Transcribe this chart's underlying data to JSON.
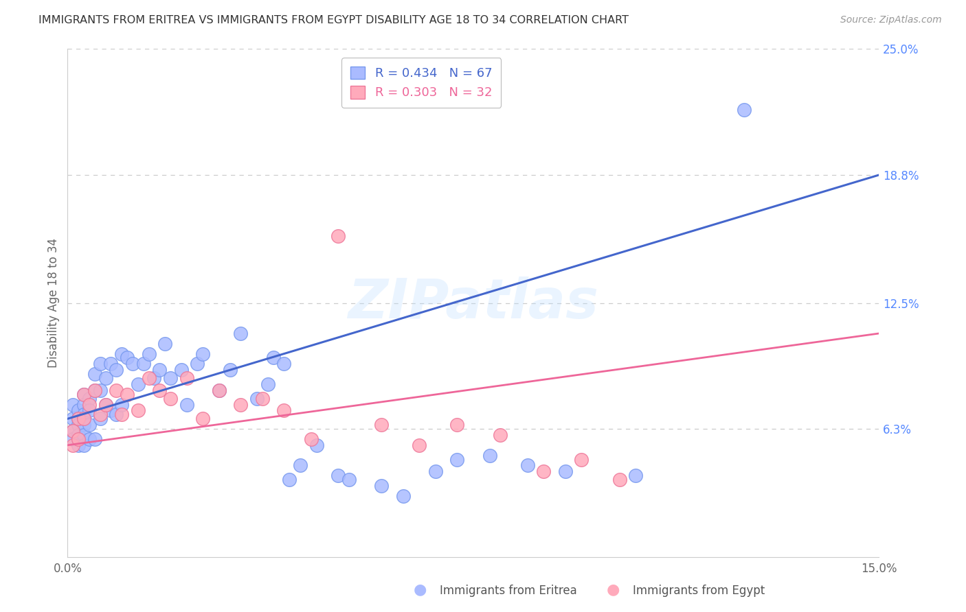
{
  "title": "IMMIGRANTS FROM ERITREA VS IMMIGRANTS FROM EGYPT DISABILITY AGE 18 TO 34 CORRELATION CHART",
  "source": "Source: ZipAtlas.com",
  "ylabel": "Disability Age 18 to 34",
  "xlim": [
    0.0,
    0.15
  ],
  "ylim": [
    0.0,
    0.25
  ],
  "ytick_labels_right": [
    "25.0%",
    "18.8%",
    "12.5%",
    "6.3%"
  ],
  "ytick_values_right": [
    0.25,
    0.188,
    0.125,
    0.063
  ],
  "series1_label": "Immigrants from Eritrea",
  "series1_R": "0.434",
  "series1_N": "67",
  "series1_dot_color": "#aabbff",
  "series1_dot_edge": "#7799ee",
  "series1_line_color": "#4466cc",
  "series2_label": "Immigrants from Egypt",
  "series2_R": "0.303",
  "series2_N": "32",
  "series2_dot_color": "#ffaabb",
  "series2_dot_edge": "#ee7799",
  "series2_line_color": "#ee6699",
  "watermark": "ZIPatlas",
  "background_color": "#ffffff",
  "grid_color": "#cccccc",
  "title_color": "#333333",
  "right_tick_color": "#5588ff",
  "blue_line_x0": 0.0,
  "blue_line_y0": 0.068,
  "blue_line_x1": 0.15,
  "blue_line_y1": 0.188,
  "pink_line_x0": 0.0,
  "pink_line_y0": 0.055,
  "pink_line_x1": 0.15,
  "pink_line_y1": 0.11,
  "s1_x": [
    0.001,
    0.001,
    0.001,
    0.001,
    0.002,
    0.002,
    0.002,
    0.002,
    0.002,
    0.003,
    0.003,
    0.003,
    0.003,
    0.003,
    0.003,
    0.004,
    0.004,
    0.004,
    0.004,
    0.005,
    0.005,
    0.005,
    0.006,
    0.006,
    0.006,
    0.007,
    0.007,
    0.008,
    0.008,
    0.009,
    0.009,
    0.01,
    0.01,
    0.011,
    0.012,
    0.013,
    0.014,
    0.015,
    0.016,
    0.017,
    0.018,
    0.019,
    0.021,
    0.022,
    0.024,
    0.025,
    0.028,
    0.03,
    0.032,
    0.035,
    0.037,
    0.038,
    0.04,
    0.041,
    0.043,
    0.046,
    0.05,
    0.052,
    0.058,
    0.062,
    0.068,
    0.072,
    0.078,
    0.085,
    0.092,
    0.105,
    0.125
  ],
  "s1_y": [
    0.075,
    0.068,
    0.062,
    0.058,
    0.072,
    0.068,
    0.065,
    0.06,
    0.055,
    0.08,
    0.075,
    0.07,
    0.065,
    0.06,
    0.055,
    0.078,
    0.072,
    0.065,
    0.058,
    0.09,
    0.082,
    0.058,
    0.095,
    0.082,
    0.068,
    0.088,
    0.075,
    0.095,
    0.072,
    0.092,
    0.07,
    0.1,
    0.075,
    0.098,
    0.095,
    0.085,
    0.095,
    0.1,
    0.088,
    0.092,
    0.105,
    0.088,
    0.092,
    0.075,
    0.095,
    0.1,
    0.082,
    0.092,
    0.11,
    0.078,
    0.085,
    0.098,
    0.095,
    0.038,
    0.045,
    0.055,
    0.04,
    0.038,
    0.035,
    0.03,
    0.042,
    0.048,
    0.05,
    0.045,
    0.042,
    0.04,
    0.22
  ],
  "s2_x": [
    0.001,
    0.001,
    0.002,
    0.002,
    0.003,
    0.003,
    0.004,
    0.005,
    0.006,
    0.007,
    0.009,
    0.01,
    0.011,
    0.013,
    0.015,
    0.017,
    0.019,
    0.022,
    0.025,
    0.028,
    0.032,
    0.036,
    0.04,
    0.045,
    0.05,
    0.058,
    0.065,
    0.072,
    0.08,
    0.088,
    0.095,
    0.102
  ],
  "s2_y": [
    0.062,
    0.055,
    0.068,
    0.058,
    0.08,
    0.068,
    0.075,
    0.082,
    0.07,
    0.075,
    0.082,
    0.07,
    0.08,
    0.072,
    0.088,
    0.082,
    0.078,
    0.088,
    0.068,
    0.082,
    0.075,
    0.078,
    0.072,
    0.058,
    0.158,
    0.065,
    0.055,
    0.065,
    0.06,
    0.042,
    0.048,
    0.038
  ]
}
